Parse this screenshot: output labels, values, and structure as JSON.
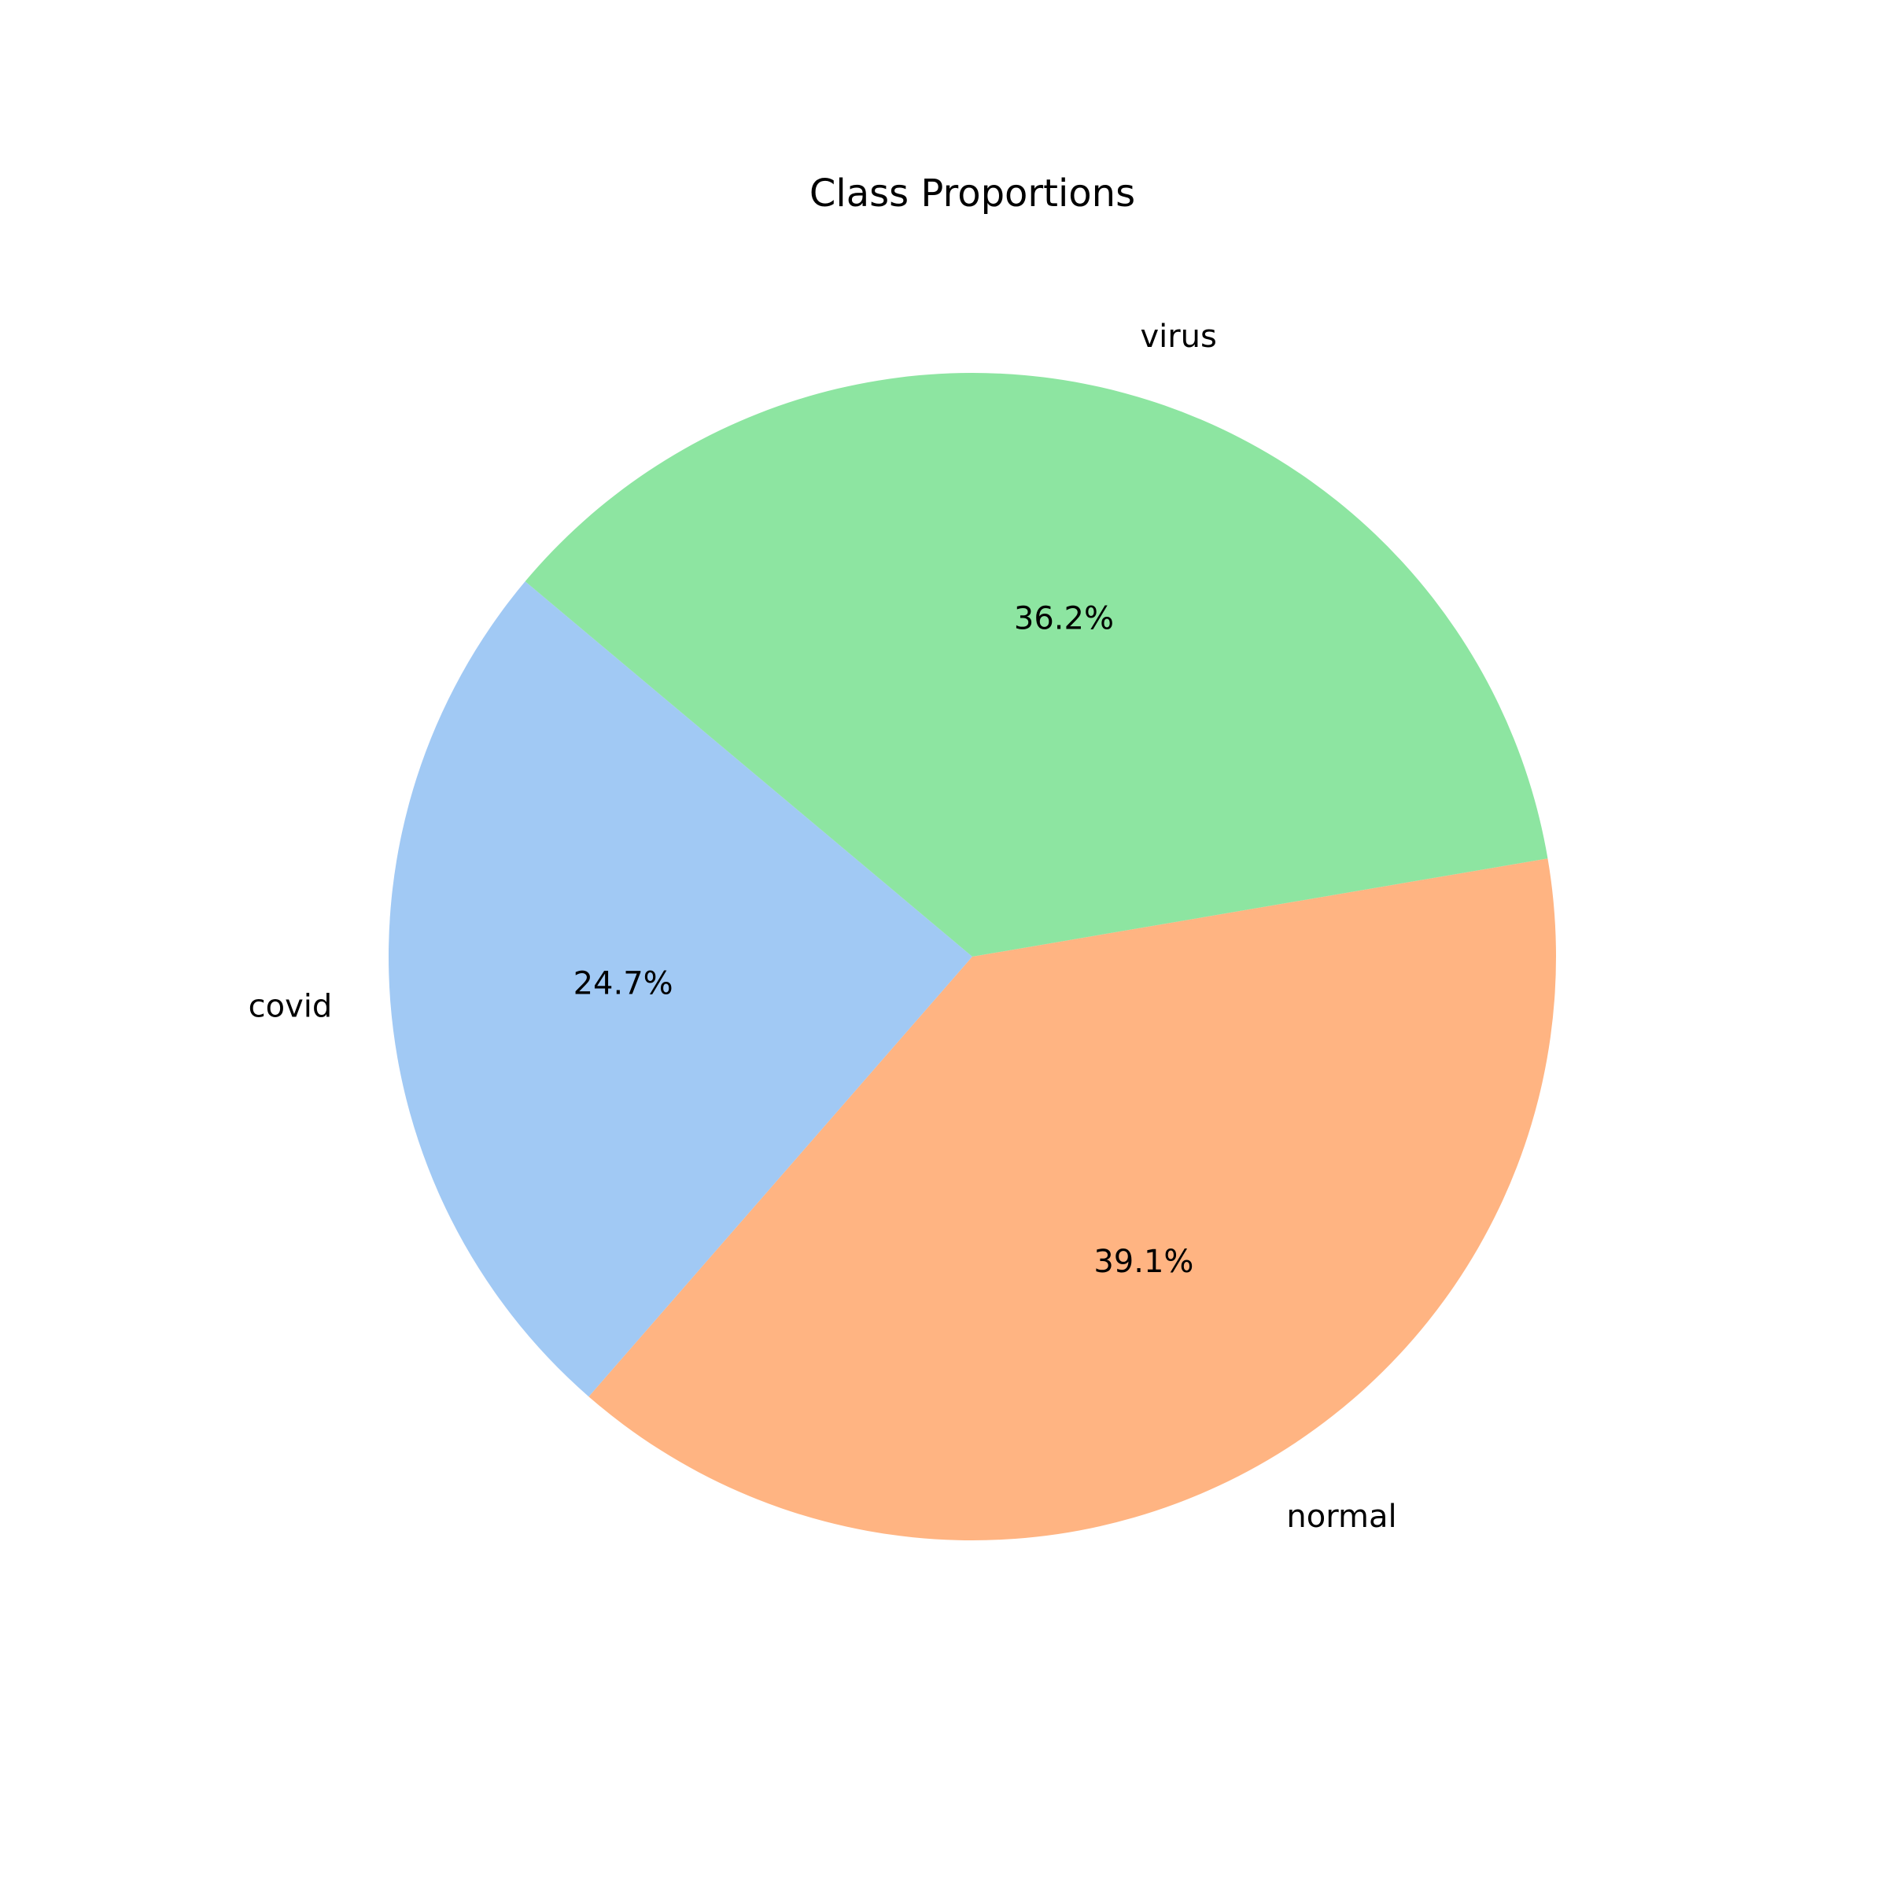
{
  "chart_data": {
    "type": "pie",
    "title": "Class Proportions",
    "categories": [
      "covid",
      "normal",
      "virus"
    ],
    "values": [
      24.7,
      39.1,
      36.2
    ],
    "percent_labels": [
      "24.7%",
      "39.1%",
      "36.2%"
    ],
    "colors": [
      "#a1c9f4",
      "#ffb482",
      "#8de5a1"
    ],
    "start_angle_deg": 140,
    "direction": "counterclockwise",
    "legend": "none"
  }
}
